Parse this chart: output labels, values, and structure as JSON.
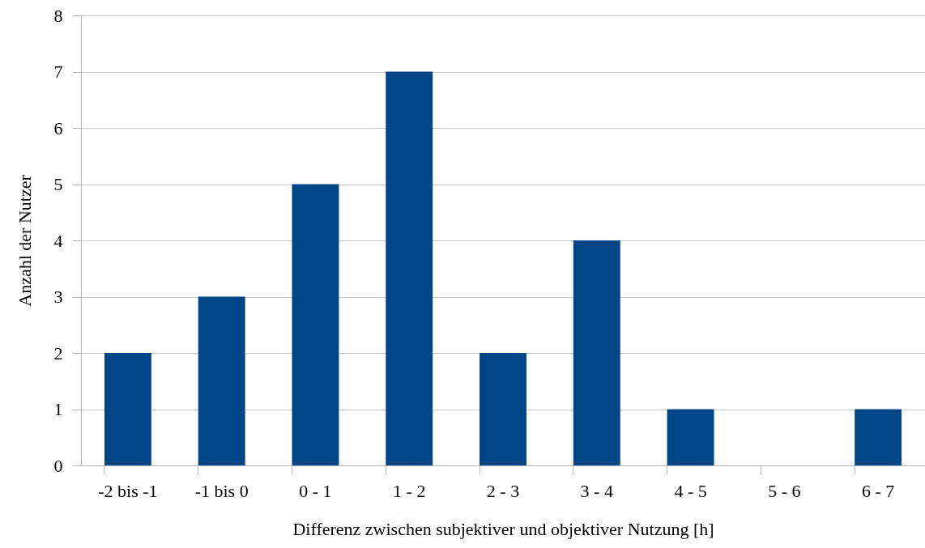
{
  "chart_data": {
    "type": "bar",
    "xlabel": "Differenz zwischen subjektiver und objektiver Nutzung [h]",
    "ylabel": "Anzahl der Nutzer",
    "categories": [
      "-2 bis -1",
      "-1 bis 0",
      "0 - 1",
      "1 - 2",
      "2 - 3",
      "3 - 4",
      "4 - 5",
      "5 - 6",
      "6 - 7"
    ],
    "values": [
      2,
      3,
      5,
      7,
      2,
      4,
      1,
      0,
      1
    ],
    "color": "#004586",
    "ylim": [
      0,
      8
    ],
    "yticks": [
      0,
      1,
      2,
      3,
      4,
      5,
      6,
      7,
      8
    ],
    "grid": "y"
  }
}
